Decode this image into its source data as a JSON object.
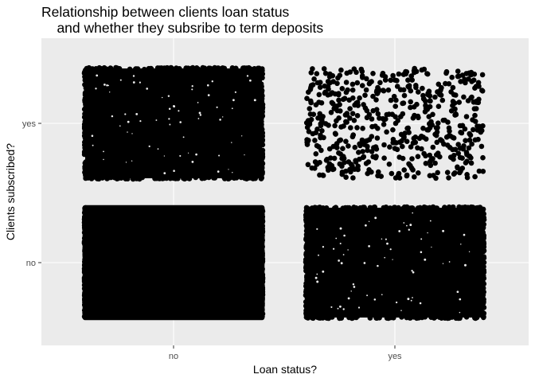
{
  "chart_data": {
    "type": "scatter",
    "title": "Relationship between clients loan status\n    and whether they subsribe to term deposits",
    "xlabel": "Loan status?",
    "ylabel": "Clients subscribed?",
    "x_categories": [
      "no",
      "yes"
    ],
    "y_categories": [
      "no",
      "yes"
    ],
    "jitter": true,
    "grid": true,
    "point_color": "#000000",
    "panel_background": "#ebebeb",
    "grid_color": "#ffffff",
    "groups": [
      {
        "x": "no",
        "y": "no",
        "density": "solid"
      },
      {
        "x": "no",
        "y": "yes",
        "density": "dense"
      },
      {
        "x": "yes",
        "y": "no",
        "density": "dense"
      },
      {
        "x": "yes",
        "y": "yes",
        "density": "sparse"
      }
    ]
  }
}
